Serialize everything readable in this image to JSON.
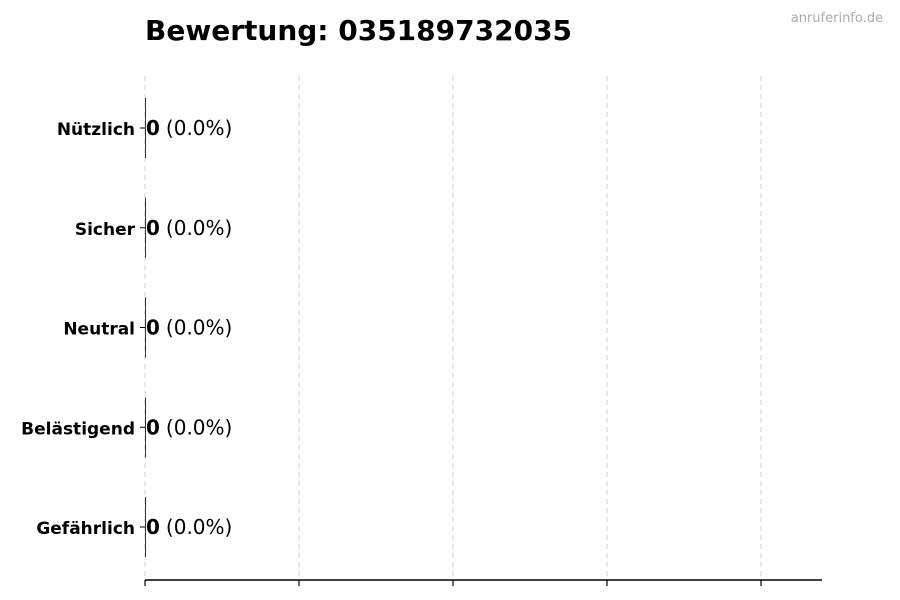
{
  "watermark": "anruferinfo.de",
  "chart_data": {
    "type": "bar",
    "orientation": "horizontal",
    "title": "Bewertung: 035189732035",
    "categories": [
      "Nützlich",
      "Sicher",
      "Neutral",
      "Belästigend",
      "Gefährlich"
    ],
    "values": [
      0,
      0,
      0,
      0,
      0
    ],
    "labels": [
      {
        "count": "0",
        "percent": "(0.0%)"
      },
      {
        "count": "0",
        "percent": "(0.0%)"
      },
      {
        "count": "0",
        "percent": "(0.0%)"
      },
      {
        "count": "0",
        "percent": "(0.0%)"
      },
      {
        "count": "0",
        "percent": "(0.0%)"
      }
    ],
    "xlabel": "",
    "ylabel": "",
    "grid": "x-dashed",
    "bar_color": "#333333"
  }
}
